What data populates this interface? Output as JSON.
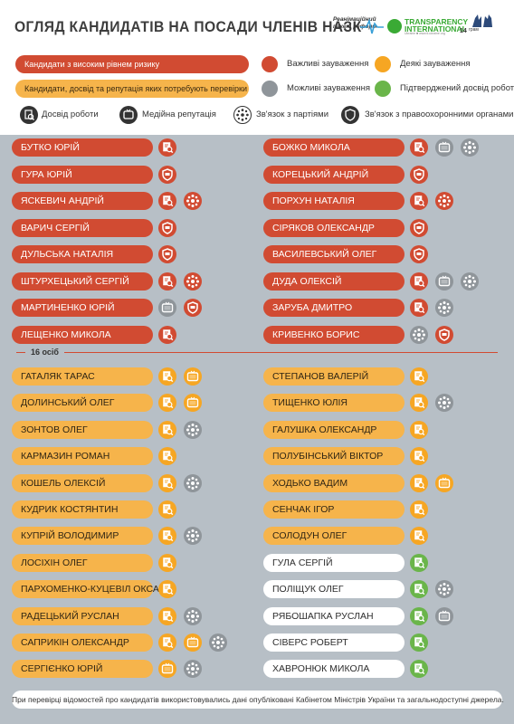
{
  "header": {
    "title": "ОГЛЯД КАНДИДАТІВ НА ПОСАДИ ЧЛЕНІВ НАЗК",
    "logo_rr_line1": "Реанімаційний",
    "logo_rr_line2": "пакет реформ",
    "logo_ti_line1": "TRANSPARENCY",
    "logo_ti_line2": "INTERNATIONAL",
    "logo_ti_line3": "Ukraine  ■  www.ti-ukraine.org",
    "logo_14_num": "14",
    "logo_14_text": "грам"
  },
  "legend": {
    "red_pill": "Кандидати з високим рівнем ризику",
    "orange_pill": "Кандидати, досвід та репутація яких потребують перевірки",
    "dots": [
      {
        "label": "Важливі зауваження",
        "color": "#d14b32"
      },
      {
        "label": "Деякі зауваження",
        "color": "#f6a623"
      },
      {
        "label": "Можливі зауваження",
        "color": "#8f959a"
      },
      {
        "label": "Підтверджений досвід роботи",
        "color": "#6ab54a"
      }
    ],
    "icons": [
      {
        "label": "Досвід роботи",
        "icon": "experience-icon"
      },
      {
        "label": "Медійна репутація",
        "icon": "media-icon"
      },
      {
        "label": "Зв'язок з партіями",
        "icon": "party-icon"
      },
      {
        "label": "Зв'язок з правоохоронними органами",
        "icon": "law-icon"
      }
    ]
  },
  "colors": {
    "red": "#d14b32",
    "orange": "#f6a623",
    "grey": "#8f959a",
    "green": "#6ab54a"
  },
  "high_risk": {
    "left": [
      {
        "name": "БУТКО ЮРІЙ",
        "icons": [
          [
            "experience",
            "red"
          ]
        ]
      },
      {
        "name": "ГУРА ЮРІЙ",
        "icons": [
          [
            "law",
            "red"
          ]
        ]
      },
      {
        "name": "ЯСКЕВИЧ АНДРІЙ",
        "icons": [
          [
            "experience",
            "red"
          ],
          [
            "party",
            "red"
          ]
        ]
      },
      {
        "name": "ВАРИЧ СЕРГІЙ",
        "icons": [
          [
            "law",
            "red"
          ]
        ]
      },
      {
        "name": "ДУЛЬСЬКА НАТАЛІЯ",
        "icons": [
          [
            "law",
            "red"
          ]
        ]
      },
      {
        "name": "ШТУРХЕЦЬКИЙ СЕРГІЙ",
        "icons": [
          [
            "experience",
            "red"
          ],
          [
            "party",
            "red"
          ]
        ]
      },
      {
        "name": "МАРТИНЕНКО ЮРІЙ",
        "icons": [
          [
            "media",
            "grey"
          ],
          [
            "law",
            "red"
          ]
        ]
      },
      {
        "name": "ЛЕЩЕНКО МИКОЛА",
        "icons": [
          [
            "experience",
            "red"
          ]
        ]
      }
    ],
    "right": [
      {
        "name": "БОЖКО МИКОЛА",
        "icons": [
          [
            "experience",
            "red"
          ],
          [
            "media",
            "grey"
          ],
          [
            "party",
            "grey"
          ]
        ]
      },
      {
        "name": "КОРЕЦЬКИЙ АНДРІЙ",
        "icons": [
          [
            "law",
            "red"
          ]
        ]
      },
      {
        "name": "ПОРХУН НАТАЛІЯ",
        "icons": [
          [
            "experience",
            "red"
          ],
          [
            "party",
            "red"
          ]
        ]
      },
      {
        "name": "СІРЯКОВ ОЛЕКСАНДР",
        "icons": [
          [
            "law",
            "red"
          ]
        ]
      },
      {
        "name": "ВАСИЛЕВСЬКИЙ ОЛЕГ",
        "icons": [
          [
            "law",
            "red"
          ]
        ]
      },
      {
        "name": "ДУДА ОЛЕКСІЙ",
        "icons": [
          [
            "experience",
            "red"
          ],
          [
            "media",
            "grey"
          ],
          [
            "party",
            "grey"
          ]
        ]
      },
      {
        "name": "ЗАРУБА ДМИТРО",
        "icons": [
          [
            "experience",
            "red"
          ],
          [
            "party",
            "grey"
          ]
        ]
      },
      {
        "name": "КРИВЕНКО БОРИС",
        "icons": [
          [
            "party",
            "grey"
          ],
          [
            "law",
            "red"
          ]
        ]
      }
    ]
  },
  "count_label": "16 осіб",
  "check_needed": {
    "left": [
      {
        "name": "ГАТАЛЯК ТАРАС",
        "pill": "orange",
        "icons": [
          [
            "experience",
            "orange"
          ],
          [
            "media",
            "orange"
          ]
        ]
      },
      {
        "name": "ДОЛИНСЬКИЙ ОЛЕГ",
        "pill": "orange",
        "icons": [
          [
            "experience",
            "orange"
          ],
          [
            "media",
            "orange"
          ]
        ]
      },
      {
        "name": "ЗОНТОВ ОЛЕГ",
        "pill": "orange",
        "icons": [
          [
            "experience",
            "orange"
          ],
          [
            "party",
            "grey"
          ]
        ]
      },
      {
        "name": "КАРМАЗИН РОМАН",
        "pill": "orange",
        "icons": [
          [
            "experience",
            "orange"
          ]
        ]
      },
      {
        "name": "КОШЕЛЬ ОЛЕКСІЙ",
        "pill": "orange",
        "icons": [
          [
            "experience",
            "orange"
          ],
          [
            "party",
            "grey"
          ]
        ]
      },
      {
        "name": "КУДРИК КОСТЯНТИН",
        "pill": "orange",
        "icons": [
          [
            "experience",
            "orange"
          ]
        ]
      },
      {
        "name": "КУПРІЙ ВОЛОДИМИР",
        "pill": "orange",
        "icons": [
          [
            "experience",
            "orange"
          ],
          [
            "party",
            "grey"
          ]
        ]
      },
      {
        "name": "ЛОСІХІН ОЛЕГ",
        "pill": "orange",
        "icons": [
          [
            "experience",
            "orange"
          ]
        ]
      },
      {
        "name": "ПАРХОМЕНКО-КУЦЕВІЛ ОКСАНА",
        "pill": "orange",
        "icons": [
          [
            "experience",
            "orange"
          ]
        ]
      },
      {
        "name": "РАДЕЦЬКИЙ РУСЛАН",
        "pill": "orange",
        "icons": [
          [
            "experience",
            "orange"
          ],
          [
            "party",
            "grey"
          ]
        ]
      },
      {
        "name": "САПРИКІН ОЛЕКСАНДР",
        "pill": "orange",
        "icons": [
          [
            "experience",
            "orange"
          ],
          [
            "media",
            "orange"
          ],
          [
            "party",
            "grey"
          ]
        ]
      },
      {
        "name": "СЕРГІЄНКО ЮРІЙ",
        "pill": "orange",
        "icons": [
          [
            "media",
            "orange"
          ],
          [
            "party",
            "grey"
          ]
        ]
      }
    ],
    "right": [
      {
        "name": "СТЕПАНОВ ВАЛЕРІЙ",
        "pill": "orange",
        "icons": [
          [
            "experience",
            "orange"
          ]
        ]
      },
      {
        "name": "ТИЩЕНКО ЮЛІЯ",
        "pill": "orange",
        "icons": [
          [
            "experience",
            "orange"
          ],
          [
            "party",
            "grey"
          ]
        ]
      },
      {
        "name": "ГАЛУШКА ОЛЕКСАНДР",
        "pill": "orange",
        "icons": [
          [
            "experience",
            "orange"
          ]
        ]
      },
      {
        "name": "ПОЛУБІНСЬКИЙ ВІКТОР",
        "pill": "orange",
        "icons": [
          [
            "experience",
            "orange"
          ]
        ]
      },
      {
        "name": "ХОДЬКО ВАДИМ",
        "pill": "orange",
        "icons": [
          [
            "experience",
            "orange"
          ],
          [
            "media",
            "orange"
          ]
        ]
      },
      {
        "name": "СЕНЧАК ІГОР",
        "pill": "orange",
        "icons": [
          [
            "experience",
            "orange"
          ]
        ]
      },
      {
        "name": "СОЛОДУН ОЛЕГ",
        "pill": "orange",
        "icons": [
          [
            "experience",
            "orange"
          ]
        ]
      },
      {
        "name": "ГУЛА СЕРГІЙ",
        "pill": "white",
        "icons": [
          [
            "experience",
            "green"
          ]
        ]
      },
      {
        "name": "ПОЛІЩУК ОЛЕГ",
        "pill": "white",
        "icons": [
          [
            "experience",
            "green"
          ],
          [
            "party",
            "grey"
          ]
        ]
      },
      {
        "name": "РЯБОШАПКА РУСЛАН",
        "pill": "white",
        "icons": [
          [
            "experience",
            "green"
          ],
          [
            "media",
            "grey"
          ]
        ]
      },
      {
        "name": "СІВЕРС РОБЕРТ",
        "pill": "white",
        "icons": [
          [
            "experience",
            "green"
          ]
        ]
      },
      {
        "name": "ХАВРОНЮК МИКОЛА",
        "pill": "white",
        "icons": [
          [
            "experience",
            "green"
          ]
        ]
      }
    ]
  },
  "footer": "При перевірці відомостей про кандидатів використовувались дані опубліковані Кабінетом Міністрів України та загальнодоступні джерела."
}
